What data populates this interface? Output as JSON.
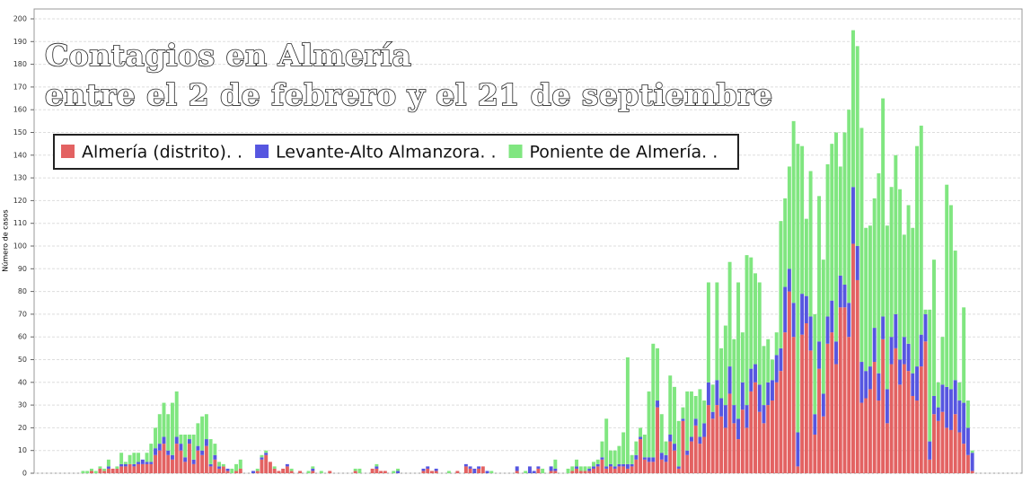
{
  "chart_data": {
    "type": "stacked_bar",
    "title": "Contagios en Almería",
    "subtitle": "entre el 2 de febrero y el 21 de septiembre",
    "y_label": "Número de casos",
    "ylim": [
      0,
      200
    ],
    "yticks": [
      0,
      10,
      20,
      30,
      40,
      50,
      60,
      70,
      80,
      90,
      100,
      110,
      120,
      130,
      140,
      150,
      160,
      170,
      180,
      190,
      200
    ],
    "grid": true,
    "legend": "top-left",
    "series": [
      {
        "name": "Almería (distrito). .",
        "color": "#e36262",
        "values": [
          0,
          0,
          0,
          0,
          0,
          0,
          0,
          0,
          0,
          0,
          0,
          0,
          0,
          1,
          0,
          2,
          1,
          2,
          2,
          2,
          3,
          3,
          4,
          3,
          4,
          4,
          4,
          4,
          8,
          10,
          13,
          8,
          6,
          13,
          10,
          5,
          13,
          4,
          10,
          8,
          12,
          3,
          6,
          2,
          3,
          1,
          0,
          1,
          2,
          0,
          0,
          0,
          1,
          6,
          8,
          5,
          2,
          1,
          2,
          3,
          1,
          0,
          1,
          0,
          0,
          1,
          0,
          0,
          0,
          1,
          0,
          0,
          0,
          0,
          0,
          1,
          0,
          0,
          0,
          2,
          2,
          1,
          1,
          0,
          0,
          0,
          0,
          0,
          0,
          0,
          0,
          1,
          2,
          1,
          1,
          0,
          0,
          0,
          0,
          1,
          0,
          3,
          2,
          0,
          2,
          3,
          0,
          0,
          0,
          0,
          0,
          0,
          0,
          1,
          0,
          0,
          0,
          0,
          2,
          0,
          0,
          1,
          1,
          0,
          0,
          0,
          1,
          2,
          1,
          1,
          1,
          2,
          3,
          6,
          2,
          3,
          2,
          3,
          3,
          2,
          3,
          6,
          15,
          6,
          5,
          5,
          29,
          6,
          5,
          14,
          10,
          2,
          23,
          8,
          14,
          21,
          13,
          16,
          30,
          24,
          30,
          25,
          20,
          35,
          22,
          15,
          28,
          20,
          36,
          40,
          27,
          22,
          30,
          32,
          40,
          45,
          62,
          80,
          60,
          3,
          61,
          66,
          54,
          17,
          46,
          25,
          57,
          62,
          48,
          73,
          73,
          60,
          101,
          85,
          31,
          33,
          37,
          49,
          32,
          59,
          22,
          48,
          55,
          39,
          48,
          45,
          34,
          32,
          47,
          58,
          6,
          26,
          23,
          27,
          20,
          19,
          26,
          18,
          13,
          8,
          1
        ]
      },
      {
        "name": "Levante-Alto Almanzora. .",
        "color": "#5656e0",
        "values": [
          0,
          0,
          0,
          0,
          0,
          0,
          0,
          0,
          0,
          0,
          0,
          0,
          0,
          0,
          0,
          0,
          0,
          1,
          0,
          0,
          1,
          1,
          0,
          1,
          1,
          2,
          1,
          1,
          3,
          3,
          3,
          2,
          2,
          3,
          3,
          2,
          2,
          2,
          2,
          2,
          3,
          1,
          2,
          1,
          0,
          1,
          0,
          0,
          0,
          0,
          0,
          1,
          0,
          1,
          1,
          0,
          0,
          0,
          0,
          1,
          0,
          0,
          0,
          0,
          0,
          1,
          0,
          0,
          0,
          0,
          0,
          0,
          0,
          0,
          0,
          0,
          0,
          0,
          0,
          0,
          1,
          0,
          0,
          0,
          0,
          1,
          0,
          0,
          0,
          0,
          0,
          1,
          1,
          0,
          1,
          0,
          0,
          0,
          0,
          0,
          0,
          1,
          1,
          2,
          1,
          0,
          1,
          0,
          0,
          0,
          0,
          0,
          0,
          2,
          0,
          0,
          3,
          1,
          1,
          0,
          0,
          2,
          1,
          0,
          0,
          0,
          0,
          1,
          0,
          0,
          1,
          1,
          1,
          1,
          1,
          1,
          1,
          1,
          1,
          2,
          1,
          2,
          1,
          1,
          2,
          2,
          3,
          3,
          3,
          3,
          3,
          1,
          1,
          2,
          2,
          3,
          3,
          6,
          10,
          3,
          11,
          8,
          10,
          12,
          8,
          9,
          12,
          10,
          10,
          8,
          12,
          8,
          10,
          9,
          12,
          10,
          20,
          10,
          15,
          15,
          18,
          12,
          15,
          9,
          12,
          10,
          12,
          14,
          10,
          14,
          10,
          15,
          25,
          15,
          18,
          12,
          10,
          15,
          12,
          10,
          15,
          12,
          15,
          11,
          12,
          12,
          10,
          15,
          14,
          12,
          8,
          8,
          6,
          12,
          18,
          18,
          15,
          14,
          18,
          12,
          8
        ]
      },
      {
        "name": "Poniente de Almería. .",
        "color": "#80e680",
        "values": [
          0,
          0,
          0,
          0,
          0,
          0,
          0,
          0,
          0,
          0,
          0,
          1,
          1,
          1,
          1,
          1,
          1,
          3,
          0,
          1,
          5,
          1,
          4,
          5,
          4,
          0,
          4,
          8,
          9,
          13,
          15,
          16,
          23,
          20,
          4,
          10,
          2,
          11,
          10,
          15,
          11,
          11,
          5,
          2,
          1,
          0,
          2,
          3,
          4,
          0,
          0,
          0,
          1,
          1,
          1,
          0,
          1,
          0,
          0,
          0,
          1,
          0,
          0,
          0,
          1,
          1,
          0,
          1,
          0,
          0,
          0,
          0,
          0,
          0,
          0,
          1,
          2,
          0,
          0,
          0,
          1,
          0,
          0,
          0,
          1,
          1,
          0,
          0,
          0,
          0,
          0,
          0,
          0,
          0,
          0,
          0,
          0,
          1,
          0,
          0,
          0,
          0,
          0,
          0,
          0,
          0,
          0,
          1,
          0,
          0,
          0,
          0,
          0,
          0,
          0,
          1,
          0,
          0,
          0,
          2,
          0,
          0,
          4,
          0,
          0,
          2,
          2,
          3,
          2,
          2,
          1,
          2,
          2,
          7,
          21,
          6,
          7,
          8,
          14,
          47,
          4,
          6,
          4,
          10,
          29,
          50,
          23,
          17,
          6,
          26,
          25,
          20,
          5,
          26,
          20,
          10,
          21,
          10,
          44,
          12,
          43,
          22,
          35,
          46,
          29,
          60,
          22,
          66,
          49,
          40,
          45,
          26,
          19,
          9,
          10,
          56,
          39,
          45,
          80,
          127,
          65,
          34,
          64,
          44,
          64,
          59,
          67,
          69,
          92,
          48,
          67,
          85,
          69,
          88,
          103,
          63,
          62,
          57,
          88,
          96,
          72,
          66,
          70,
          75,
          45,
          61,
          64,
          97,
          92,
          2,
          58,
          60,
          11,
          21,
          89,
          81,
          57,
          8,
          42,
          12,
          1
        ]
      }
    ]
  }
}
